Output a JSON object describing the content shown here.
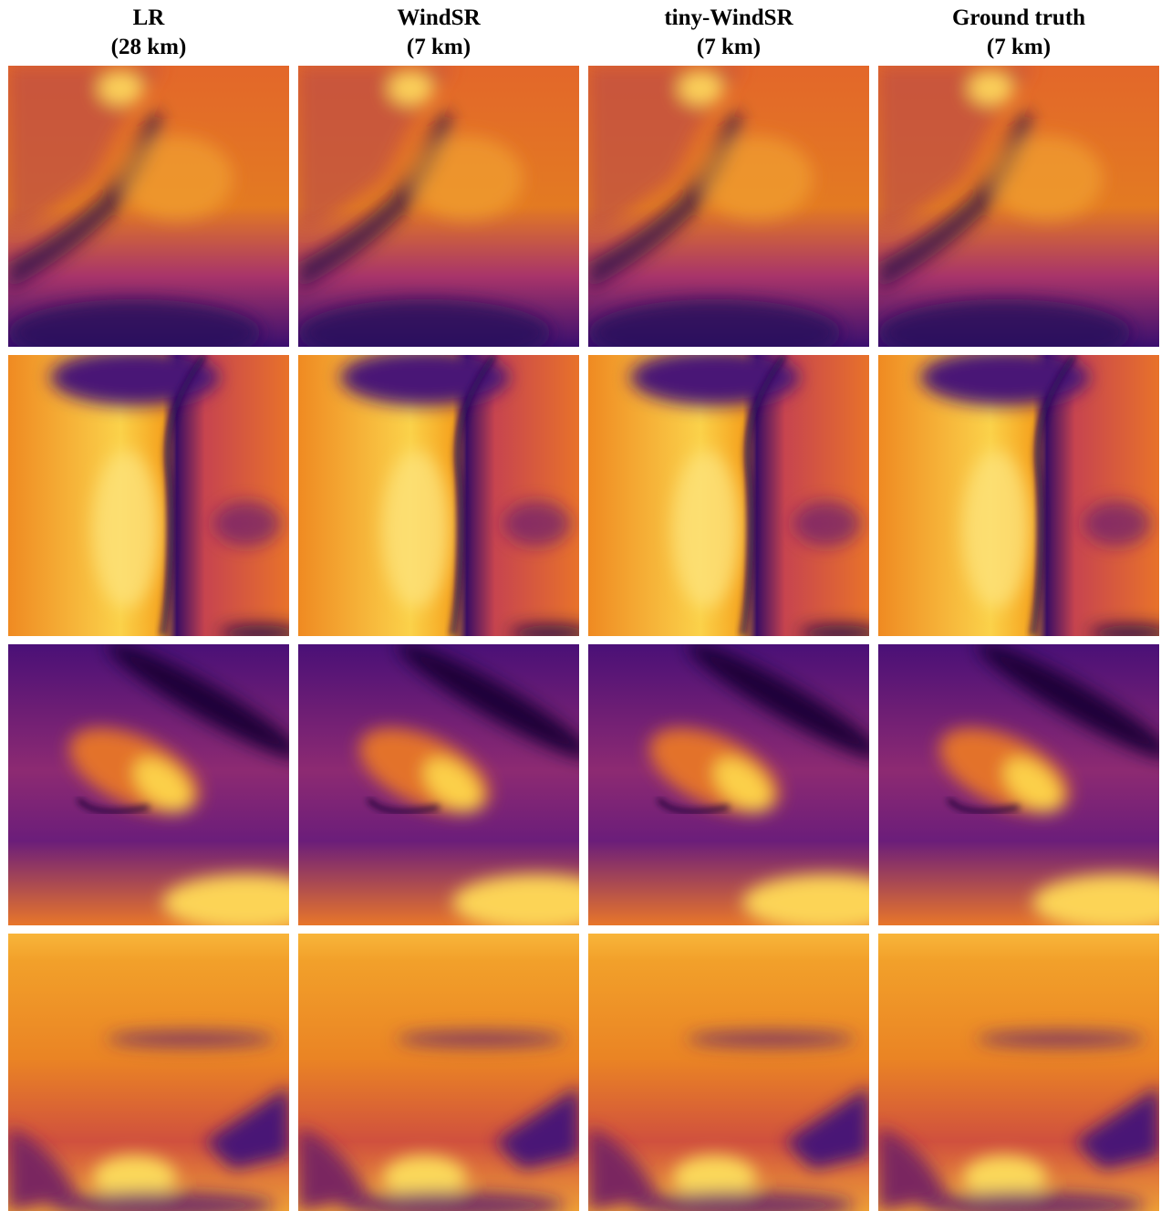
{
  "columns": [
    {
      "title": "LR",
      "subtitle": "(28 km)"
    },
    {
      "title": "WindSR",
      "subtitle": "(7 km)"
    },
    {
      "title": "tiny-WindSR",
      "subtitle": "(7 km)"
    },
    {
      "title": "Ground truth",
      "subtitle": "(7 km)"
    }
  ]
}
